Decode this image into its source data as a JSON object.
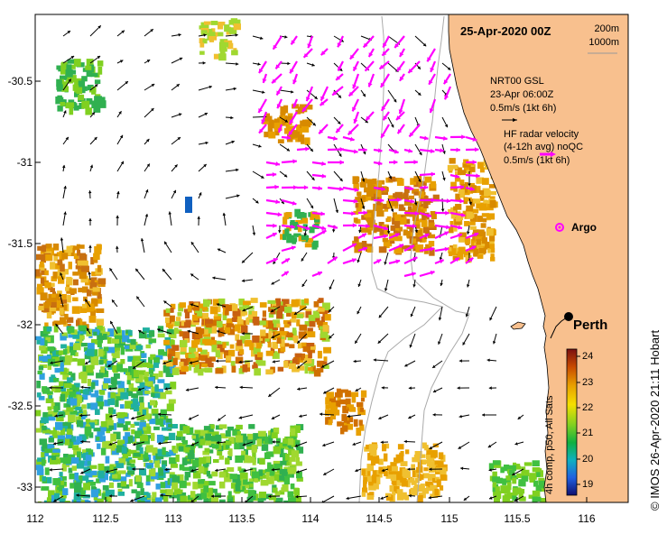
{
  "title": "25-Apr-2020 00Z",
  "depth_legend": {
    "contour1": "200m",
    "contour2": "1000m"
  },
  "current_legend": {
    "model": "NRT00 GSL",
    "model_time": "23-Apr 06:00Z",
    "model_scale": "0.5m/s (1kt 6h)",
    "radar_title": "HF radar velocity",
    "radar_avg": "(4-12h avg) noQC",
    "radar_scale": "0.5m/s (1kt 6h)"
  },
  "places": {
    "argo": "Argo",
    "perth": "Perth"
  },
  "axes": {
    "lat_ticks": [
      "-30.5",
      "-31",
      "-31.5",
      "-32",
      "-32.5",
      "-33"
    ],
    "lon_ticks": [
      "112",
      "112.5",
      "113",
      "113.5",
      "114",
      "114.5",
      "115",
      "115.5",
      "116"
    ]
  },
  "colorbar": {
    "label": "4h comp, p50, All Sats",
    "ticks": [
      "24",
      "23",
      "22",
      "21",
      "20",
      "19"
    ]
  },
  "credit": "© IMOS 26-Apr-2020 21:11 Hobart",
  "colors": {
    "land": "#f8c08e",
    "radar": "#ff00ff",
    "ocean": "#ffffff"
  }
}
